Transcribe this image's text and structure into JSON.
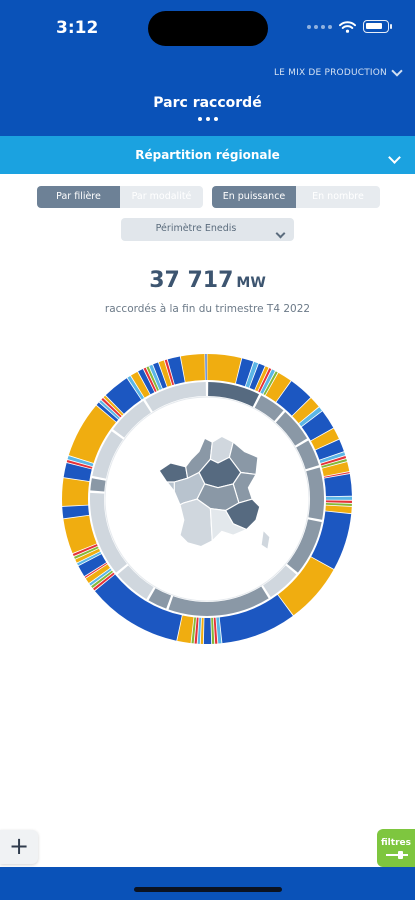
{
  "status": {
    "time": "3:12"
  },
  "header": {
    "mix_link": "LE MIX DE PRODUCTION",
    "title": "Parc raccordé"
  },
  "section": {
    "title": "Répartition régionale"
  },
  "toggles": {
    "by_type": [
      {
        "label": "Par filière",
        "active": true
      },
      {
        "label": "Par modalité",
        "active": false
      }
    ],
    "by_measure": [
      {
        "label": "En puissance",
        "active": true
      },
      {
        "label": "En nombre",
        "active": false
      }
    ]
  },
  "perimeter": {
    "selected": "Périmètre Enedis"
  },
  "summary": {
    "total": "37 717",
    "unit": "MW",
    "caption": "raccordés à la fin du trimestre T4 2022"
  },
  "colors": {
    "primary": "#0a52b8",
    "accent": "#1ba2e0",
    "solar": "#f0ad10",
    "wind": "#1c57c1",
    "hydro": "#5bb6e6",
    "bio": "#e4333a",
    "other": "#85b939",
    "region_mid": "#8a98a6",
    "region_dark": "#566a80",
    "region_light": "#d0d7de",
    "filters": "#7ec63f"
  },
  "icons": {
    "add": "+",
    "filters_label": "filtres"
  },
  "chart_data": {
    "type": "pie",
    "inner_ring_note": "regions",
    "regions": [
      {
        "share": 7.5,
        "shade": "dark"
      },
      {
        "share": 4.0,
        "shade": "mid"
      },
      {
        "share": 5.0,
        "shade": "mid"
      },
      {
        "share": 4.0,
        "shade": "mid"
      },
      {
        "share": 7.5,
        "shade": "mid"
      },
      {
        "share": 8.0,
        "shade": "mid"
      },
      {
        "share": 5.0,
        "shade": "light"
      },
      {
        "share": 14.5,
        "shade": "mid"
      },
      {
        "share": 3.0,
        "shade": "mid"
      },
      {
        "share": 5.5,
        "shade": "light"
      },
      {
        "share": 12.0,
        "shade": "light"
      },
      {
        "share": 2.0,
        "shade": "mid"
      },
      {
        "share": 7.0,
        "shade": "light"
      },
      {
        "share": 6.0,
        "shade": "light"
      },
      {
        "share": 9.0,
        "shade": "light"
      }
    ],
    "outer_segments": [
      [
        "solar",
        3.4
      ],
      [
        "wind",
        1.2
      ],
      [
        "hydro",
        0.5
      ],
      [
        "wind",
        0.7
      ],
      [
        "solar",
        0.4
      ],
      [
        "bio",
        0.3
      ],
      [
        "hydro",
        0.4
      ],
      [
        "other",
        0.3
      ],
      [
        "solar",
        1.5
      ],
      [
        "wind",
        2.5
      ],
      [
        "solar",
        1.2
      ],
      [
        "hydro",
        0.5
      ],
      [
        "wind",
        2.0
      ],
      [
        "solar",
        1.2
      ],
      [
        "wind",
        1.3
      ],
      [
        "hydro",
        0.4
      ],
      [
        "bio",
        0.3
      ],
      [
        "other",
        0.3
      ],
      [
        "solar",
        1.0
      ],
      [
        "bio",
        0.2
      ],
      [
        "wind",
        2.2
      ],
      [
        "hydro",
        0.4
      ],
      [
        "bio",
        0.3
      ],
      [
        "other",
        0.3
      ],
      [
        "solar",
        0.7
      ],
      [
        "wind",
        5.7
      ],
      [
        "solar",
        6.0
      ],
      [
        "wind",
        7.5
      ],
      [
        "hydro",
        0.4
      ],
      [
        "bio",
        0.3
      ],
      [
        "other",
        0.3
      ],
      [
        "wind",
        0.8
      ],
      [
        "solar",
        0.3
      ],
      [
        "hydro",
        0.3
      ],
      [
        "bio",
        0.3
      ],
      [
        "other",
        0.3
      ],
      [
        "solar",
        1.4
      ],
      [
        "wind",
        9.5
      ],
      [
        "bio",
        0.3
      ],
      [
        "other",
        0.3
      ],
      [
        "hydro",
        0.3
      ],
      [
        "solar",
        0.6
      ],
      [
        "bio",
        0.2
      ],
      [
        "wind",
        1.2
      ],
      [
        "hydro",
        0.3
      ],
      [
        "solar",
        0.4
      ],
      [
        "other",
        0.3
      ],
      [
        "bio",
        0.3
      ],
      [
        "solar",
        3.5
      ],
      [
        "wind",
        1.2
      ],
      [
        "solar",
        2.8
      ],
      [
        "wind",
        1.5
      ],
      [
        "bio",
        0.3
      ],
      [
        "hydro",
        0.4
      ],
      [
        "solar",
        5.6
      ],
      [
        "wind",
        0.4
      ],
      [
        "hydro",
        0.3
      ],
      [
        "bio",
        0.3
      ],
      [
        "solar",
        0.3
      ],
      [
        "wind",
        2.7
      ],
      [
        "hydro",
        0.4
      ],
      [
        "solar",
        0.8
      ],
      [
        "wind",
        0.6
      ],
      [
        "bio",
        0.3
      ],
      [
        "other",
        0.3
      ],
      [
        "hydro",
        0.4
      ],
      [
        "wind",
        0.6
      ],
      [
        "solar",
        0.6
      ],
      [
        "bio",
        0.3
      ],
      [
        "wind",
        1.3
      ],
      [
        "solar",
        2.4
      ],
      [
        "wind",
        0.2
      ]
    ]
  }
}
